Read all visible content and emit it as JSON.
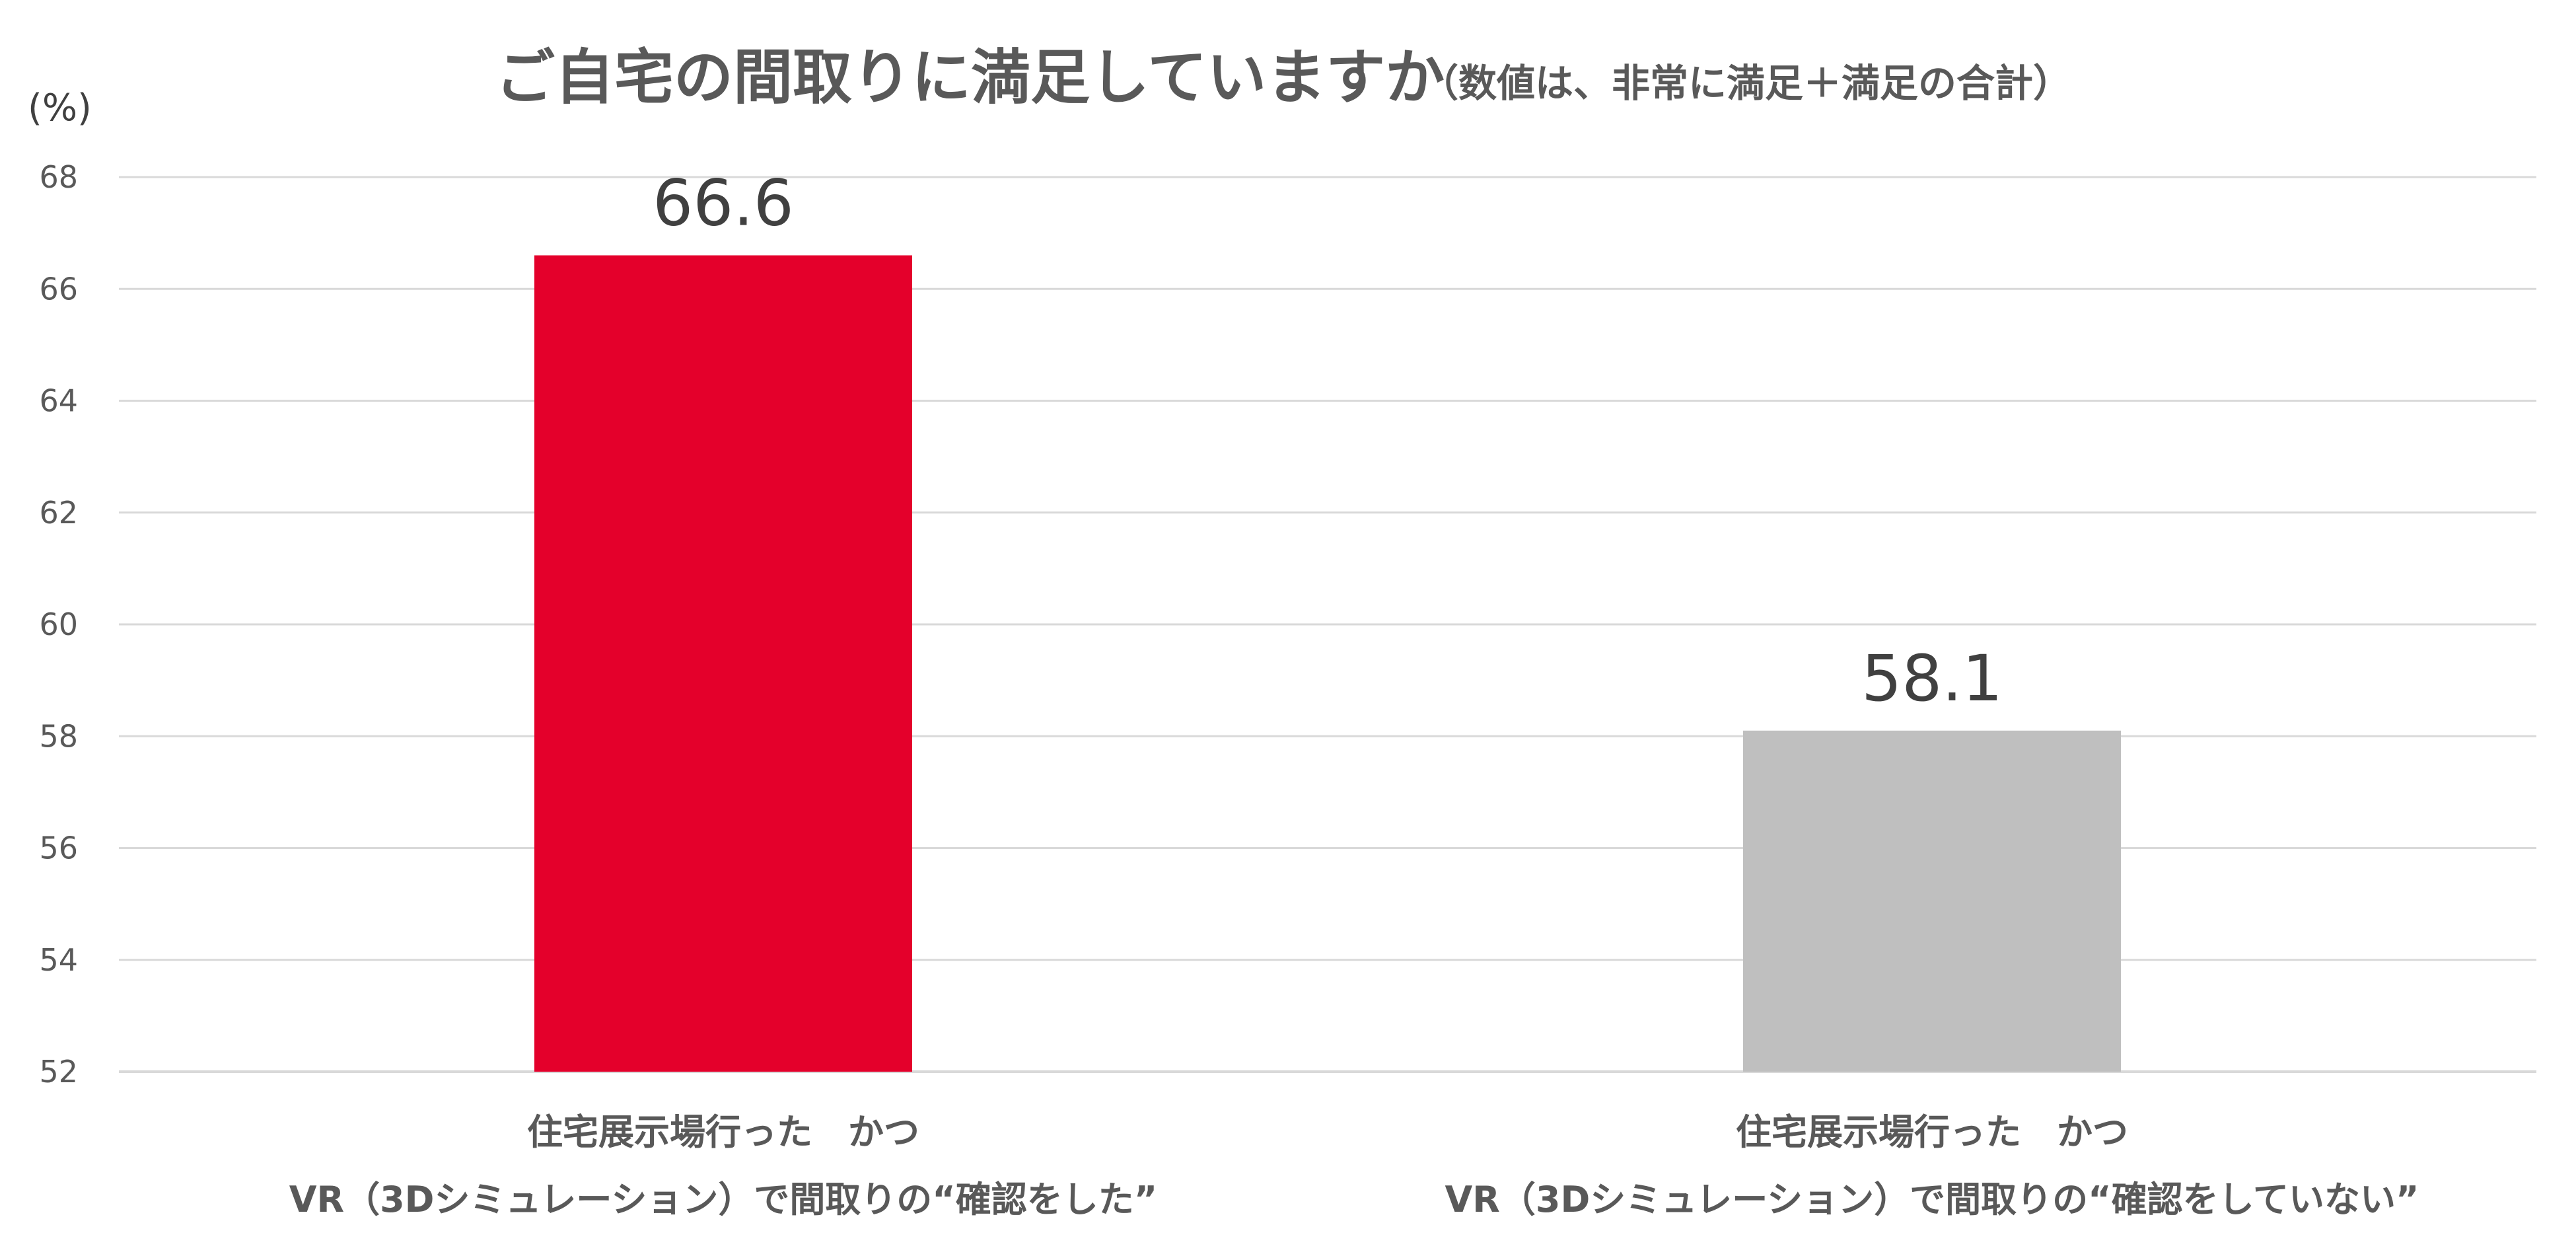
{
  "chart_data": {
    "type": "bar",
    "title": "ご自宅の間取りに満足していますか",
    "subtitle": "（数値は、非常に満足＋満足の合計）",
    "unit_label": "(%)",
    "categories": [
      [
        "住宅展示場行った　かつ",
        "VR（3Dシミュレーション）で間取りの“確認をした”"
      ],
      [
        "住宅展示場行った　かつ",
        "VR（3Dシミュレーション）で間取りの“確認をしていない”"
      ]
    ],
    "values": [
      66.6,
      58.1
    ],
    "value_labels": [
      "66.6",
      "58.1"
    ],
    "colors": [
      "#e4002b",
      "#bfbfbf"
    ],
    "ylim": [
      52,
      68
    ],
    "yticks": [
      52,
      54,
      56,
      58,
      60,
      62,
      64,
      66,
      68
    ],
    "grid": true,
    "legend": "none"
  }
}
